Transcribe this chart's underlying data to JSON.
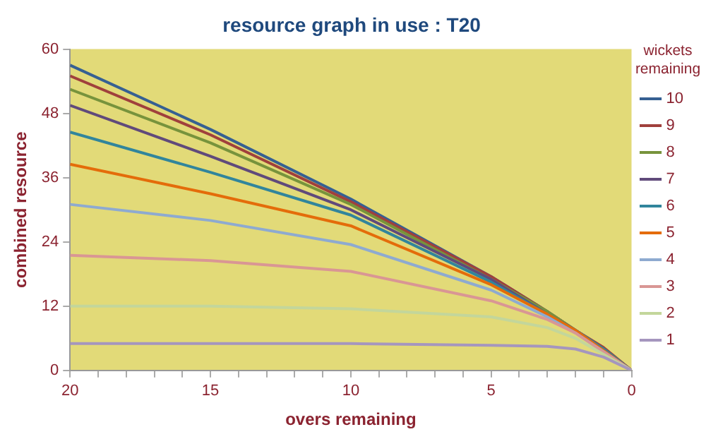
{
  "chart_data": {
    "type": "line",
    "title": "resource graph in use : T20",
    "xlabel": "overs remaining",
    "ylabel": "combined resource",
    "legend_title": "wickets remaining",
    "legend": "right",
    "grid": false,
    "marker": "none",
    "line_style": "solid",
    "x": [
      20,
      15,
      10,
      5,
      3,
      2,
      1,
      0
    ],
    "xlim": [
      20,
      0
    ],
    "xticks": [
      20,
      {
        "value": 19,
        "label": null
      },
      {
        "value": 18,
        "label": null
      },
      {
        "value": 17,
        "label": null
      },
      {
        "value": 16,
        "label": null
      },
      15,
      {
        "value": 14,
        "label": null
      },
      {
        "value": 13,
        "label": null
      },
      {
        "value": 12,
        "label": null
      },
      {
        "value": 11,
        "label": null
      },
      10,
      {
        "value": 9,
        "label": null
      },
      {
        "value": 8,
        "label": null
      },
      {
        "value": 7,
        "label": null
      },
      {
        "value": 6,
        "label": null
      },
      5,
      {
        "value": 4,
        "label": null
      },
      {
        "value": 3,
        "label": null
      },
      {
        "value": 2,
        "label": null
      },
      {
        "value": 1,
        "label": null
      },
      0
    ],
    "ylim": [
      0,
      60
    ],
    "yticks": [
      0,
      12,
      24,
      36,
      48,
      60
    ],
    "series": [
      {
        "name": "10",
        "color": "#366092",
        "values": [
          57,
          45,
          32,
          17.5,
          11,
          7.5,
          4,
          0
        ]
      },
      {
        "name": "9",
        "color": "#a0403c",
        "values": [
          55,
          44,
          31.5,
          17.5,
          11,
          7.5,
          4.3,
          0
        ]
      },
      {
        "name": "8",
        "color": "#77933c",
        "values": [
          52.5,
          42.5,
          31,
          17,
          11,
          7.5,
          4,
          0
        ]
      },
      {
        "name": "7",
        "color": "#604a7b",
        "values": [
          49.5,
          40,
          30,
          17,
          10.5,
          7.5,
          4,
          0
        ]
      },
      {
        "name": "6",
        "color": "#31859c",
        "values": [
          44.5,
          37,
          29,
          16.5,
          10.5,
          7.5,
          4,
          0
        ]
      },
      {
        "name": "5",
        "color": "#e46c0a",
        "values": [
          38.5,
          33,
          27,
          16,
          10.5,
          7.5,
          3.7,
          0
        ]
      },
      {
        "name": "4",
        "color": "#8eaad0",
        "values": [
          31,
          28,
          23.5,
          15,
          10,
          7,
          3.5,
          0
        ]
      },
      {
        "name": "3",
        "color": "#d99694",
        "values": [
          21.5,
          20.5,
          18.5,
          13,
          9.5,
          7,
          3.5,
          0
        ]
      },
      {
        "name": "2",
        "color": "#c3d69b",
        "values": [
          12,
          12,
          11.5,
          10,
          8,
          6,
          3,
          0
        ]
      },
      {
        "name": "1",
        "color": "#a596be",
        "values": [
          5,
          5,
          5,
          4.7,
          4.5,
          4,
          2.5,
          0
        ]
      }
    ]
  }
}
